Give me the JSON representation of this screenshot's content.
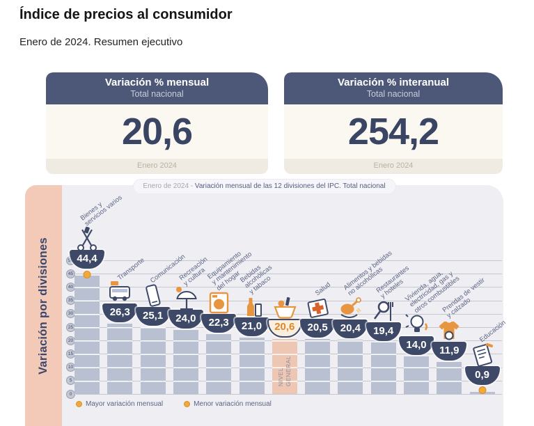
{
  "page": {
    "title": "Índice de precios al consumidor",
    "subtitle": "Enero de 2024. Resumen ejecutivo"
  },
  "colors": {
    "header_navy": "#4d5879",
    "number_navy": "#3a4563",
    "card_body_cream": "#fbf8f2",
    "card_footer": "#f0ebe2",
    "panel_bg": "#efeef3",
    "ylabel_strip_salmon": "#f3cab8",
    "bar_gray_blue": "#b8c0d1",
    "bar_general_salmon": "#edc7b4",
    "badge_navy": "#3d4967",
    "accent_orange": "#e8953f",
    "marker_dot_orange": "#f2a93b"
  },
  "cards": [
    {
      "header": "Variación % mensual",
      "subheader": "Total nacional",
      "value": "20,6",
      "period": "Enero 2024"
    },
    {
      "header": "Variación % interanual",
      "subheader": "Total nacional",
      "value": "254,2",
      "period": "Enero 2024"
    }
  ],
  "chart_data": {
    "type": "bar",
    "title": "Enero de 2024 - Variación mensual de las 12 divisiones del IPC. Total nacional",
    "title_prefix": "Enero de 2024 - ",
    "title_rest": "Variación mensual de las 12 divisiones del IPC. Total nacional",
    "ylabel": "Variación por divisiones",
    "ylim": [
      0,
      50
    ],
    "yticks": [
      0,
      5,
      10,
      15,
      20,
      25,
      30,
      35,
      40,
      45,
      50
    ],
    "grid": true,
    "legend_position": "bottom",
    "categories": [
      "Bienes y servicios varios",
      "Transporte",
      "Comunicación",
      "Recreación y cultura",
      "Equipamiento y mantenimiento del hogar",
      "Bebidas alcohólicas y tabaco",
      "NIVEL GENERAL",
      "Salud",
      "Alimentos y bebidas no alcohólicas",
      "Restaurantes y hoteles",
      "Vivienda, agua, electricidad, gas y otros combustibles",
      "Prendas de vestir y calzado",
      "Educación"
    ],
    "label_lines": [
      [
        "Bienes y",
        "servicios varios"
      ],
      [
        "Transporte"
      ],
      [
        "Comunicación"
      ],
      [
        "Recreación",
        "y cultura"
      ],
      [
        "Equipamiento",
        "y mantenimiento",
        "del hogar"
      ],
      [
        "Bebidas",
        "alcohólicas",
        "y tabaco"
      ],
      [],
      [
        "Salud"
      ],
      [
        "Alimentos y bebidas",
        "no alcohólicas"
      ],
      [
        "Restaurantes",
        "y hoteles"
      ],
      [
        "Vivienda, agua,",
        "electricidad, gas y",
        "otros combustibles"
      ],
      [
        "Prendas de vestir",
        "y calzado"
      ],
      [
        "Educación"
      ]
    ],
    "values": [
      44.4,
      26.3,
      25.1,
      24.0,
      22.3,
      21.0,
      20.6,
      20.5,
      20.4,
      19.4,
      14.0,
      11.9,
      0.9
    ],
    "value_labels": [
      "44,4",
      "26,3",
      "25,1",
      "24,0",
      "22,3",
      "21,0",
      "20,6",
      "20,5",
      "20,4",
      "19,4",
      "14,0",
      "11,9",
      "0,9"
    ],
    "icons": [
      "scissors-icon",
      "bus-icon",
      "smartphone-icon",
      "beach-umbrella-icon",
      "washing-machine-icon",
      "bottles-icon",
      "shopping-basket-icon",
      "medical-cross-icon",
      "roast-chicken-icon",
      "fork-magnifier-icon",
      "lightbulb-icon",
      "tshirt-icon",
      "notebook-icon"
    ],
    "highlight_index": 6,
    "general_bar_text": "NIVEL\nGENERAL",
    "max_marker_index": 0,
    "min_marker_index": 12,
    "legend": [
      {
        "label": "Mayor variación mensual"
      },
      {
        "label": "Menor variación mensual"
      }
    ]
  }
}
